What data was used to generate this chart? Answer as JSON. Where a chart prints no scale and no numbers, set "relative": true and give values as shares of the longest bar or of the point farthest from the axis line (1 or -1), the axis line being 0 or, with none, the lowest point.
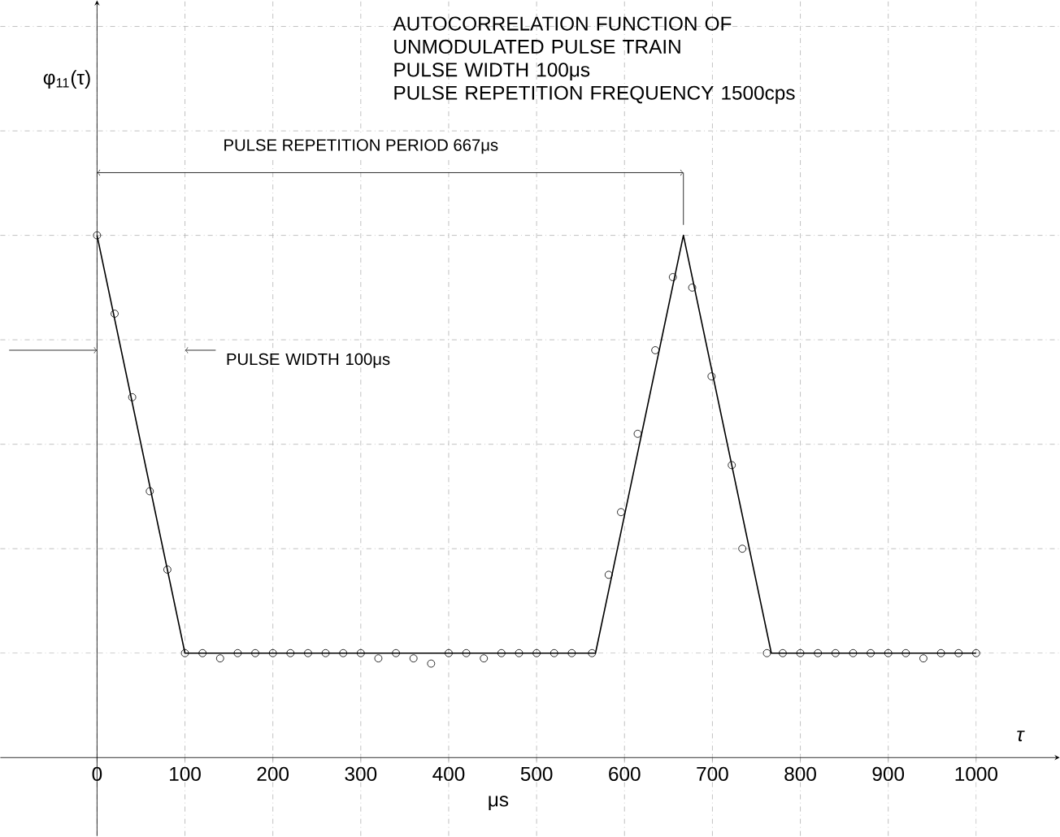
{
  "chart_data": {
    "type": "line",
    "relative": true,
    "title": "AUTOCORRELATION FUNCTION OF UNMODULATED PULSE TRAIN",
    "subtitle": "PULSE WIDTH 100μs",
    "xlabel": "μs",
    "annotations": [
      "PULSE REPETITION FREQUENCY 1500cps",
      "PULSE REPETITION PERIOD 667μs",
      "PULSE WIDTH 100μs",
      "τ",
      "φ$_{11}$(τ)"
    ],
    "xlim": [
      -110,
      1095
    ],
    "xticks": [
      0,
      100,
      200,
      300,
      400,
      500,
      600,
      700,
      800,
      900,
      1000
    ],
    "grid": true,
    "series": [
      {
        "color": "#000000",
        "marker": "none",
        "x": [
          0,
          100,
          567,
          667,
          767,
          1000
        ],
        "values": [
          1,
          0.2,
          0.2,
          1,
          0.2,
          0.2
        ]
      },
      {
        "type": "scatter",
        "color": "#000000",
        "marker": "circle",
        "x": [
          0,
          20,
          40,
          60,
          80,
          100,
          120,
          140,
          160,
          180,
          200,
          220,
          240,
          260,
          280,
          300,
          320,
          340,
          360,
          380,
          400,
          420,
          440,
          460,
          480,
          500,
          520,
          540,
          563,
          582,
          596,
          615,
          635,
          655,
          677,
          699,
          722,
          734,
          762,
          780,
          800,
          820,
          840,
          860,
          880,
          900,
          920,
          940,
          960,
          980,
          1000
        ],
        "values": [
          1,
          0.85,
          0.69,
          0.51,
          0.36,
          0.2,
          0.2,
          0.19,
          0.2,
          0.2,
          0.2,
          0.2,
          0.2,
          0.2,
          0.2,
          0.2,
          0.19,
          0.2,
          0.19,
          0.18,
          0.2,
          0.2,
          0.19,
          0.2,
          0.2,
          0.2,
          0.2,
          0.2,
          0.2,
          0.35,
          0.47,
          0.62,
          0.78,
          0.92,
          0.9,
          0.73,
          0.56,
          0.4,
          0.2,
          0.2,
          0.2,
          0.2,
          0.2,
          0.2,
          0.2,
          0.2,
          0.2,
          0.19,
          0.2,
          0.2,
          0.2
        ]
      }
    ]
  }
}
